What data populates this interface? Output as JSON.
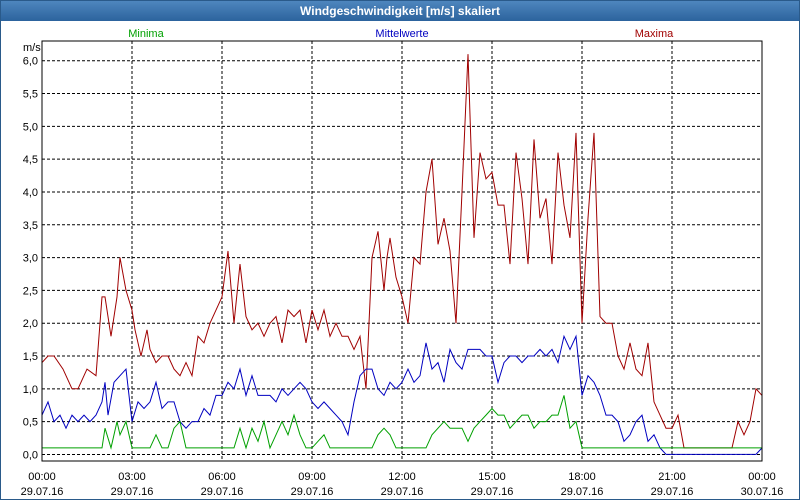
{
  "window": {
    "title": "Windgeschwindigkeit [m/s] skaliert"
  },
  "colors": {
    "minima": "#00a000",
    "mittelwerte": "#0000c0",
    "maxima": "#a00000",
    "grid": "#000000"
  },
  "chart_data": {
    "type": "line",
    "title": "Windgeschwindigkeit [m/s] skaliert",
    "ylabel": "m/s",
    "ylim": [
      -0.1,
      6.3
    ],
    "yticks": [
      "0,0",
      "0,5",
      "1,0",
      "1,5",
      "2,0",
      "2,5",
      "3,0",
      "3,5",
      "4,0",
      "4,5",
      "5,0",
      "5,5",
      "6,0"
    ],
    "xlim": [
      0,
      24
    ],
    "xticks": [
      {
        "time": "00:00",
        "date": "29.07.16"
      },
      {
        "time": "03:00",
        "date": "29.07.16"
      },
      {
        "time": "06:00",
        "date": "29.07.16"
      },
      {
        "time": "09:00",
        "date": "29.07.16"
      },
      {
        "time": "12:00",
        "date": "29.07.16"
      },
      {
        "time": "15:00",
        "date": "29.07.16"
      },
      {
        "time": "18:00",
        "date": "29.07.16"
      },
      {
        "time": "21:00",
        "date": "29.07.16"
      },
      {
        "time": "00:00",
        "date": "30.07.16"
      }
    ],
    "legend": [
      "Minima",
      "Mittelwerte",
      "Maxima"
    ],
    "series": [
      {
        "name": "Maxima",
        "color": "#a00000",
        "x": [
          0,
          0.2,
          0.4,
          0.7,
          1.0,
          1.2,
          1.5,
          1.8,
          2.0,
          2.1,
          2.3,
          2.5,
          2.6,
          2.8,
          3.0,
          3.1,
          3.3,
          3.5,
          3.6,
          3.8,
          4.0,
          4.2,
          4.4,
          4.6,
          4.8,
          5.0,
          5.2,
          5.4,
          5.6,
          5.8,
          6.0,
          6.2,
          6.4,
          6.6,
          6.8,
          7.0,
          7.2,
          7.4,
          7.6,
          7.8,
          8.0,
          8.2,
          8.4,
          8.6,
          8.8,
          9.0,
          9.2,
          9.4,
          9.6,
          9.8,
          10.0,
          10.2,
          10.4,
          10.6,
          10.8,
          11.0,
          11.2,
          11.4,
          11.5,
          11.6,
          11.8,
          12.0,
          12.2,
          12.4,
          12.6,
          12.8,
          13.0,
          13.2,
          13.4,
          13.6,
          13.8,
          14.0,
          14.2,
          14.4,
          14.6,
          14.8,
          15.0,
          15.2,
          15.4,
          15.6,
          15.8,
          16.0,
          16.2,
          16.4,
          16.6,
          16.8,
          17.0,
          17.2,
          17.4,
          17.6,
          17.8,
          18.0,
          18.2,
          18.4,
          18.6,
          18.8,
          19.0,
          19.2,
          19.4,
          19.6,
          19.8,
          20.0,
          20.2,
          20.4,
          20.6,
          20.8,
          21.0,
          21.2,
          21.4,
          22.0,
          22.6,
          23.0,
          23.2,
          23.4,
          23.6,
          23.8,
          24.0
        ],
        "values": [
          1.4,
          1.5,
          1.5,
          1.3,
          1.0,
          1.0,
          1.3,
          1.2,
          2.4,
          2.4,
          1.8,
          2.4,
          3.0,
          2.5,
          2.2,
          1.9,
          1.5,
          1.9,
          1.6,
          1.4,
          1.5,
          1.5,
          1.3,
          1.2,
          1.4,
          1.2,
          1.8,
          1.7,
          2.0,
          2.2,
          2.4,
          3.1,
          2.0,
          2.9,
          2.1,
          1.9,
          2.0,
          1.8,
          2.0,
          2.1,
          1.7,
          2.2,
          2.1,
          2.2,
          1.7,
          2.2,
          1.9,
          2.2,
          1.8,
          2.0,
          1.8,
          1.8,
          1.6,
          1.8,
          1.0,
          3.0,
          3.4,
          2.5,
          3.0,
          3.3,
          2.7,
          2.4,
          2.0,
          3.0,
          2.9,
          4.0,
          4.5,
          3.2,
          3.6,
          3.1,
          2.0,
          4.0,
          6.1,
          3.3,
          4.6,
          4.2,
          4.3,
          3.8,
          3.8,
          2.9,
          4.6,
          3.9,
          2.9,
          4.8,
          3.6,
          3.9,
          2.9,
          4.6,
          3.8,
          3.3,
          4.9,
          2.0,
          3.6,
          4.9,
          2.1,
          2.0,
          2.0,
          1.5,
          1.3,
          1.7,
          1.3,
          1.2,
          1.7,
          0.8,
          0.6,
          0.4,
          0.4,
          0.6,
          0.1,
          0.1,
          0.1,
          0.1,
          0.5,
          0.3,
          0.5,
          1.0,
          0.9
        ]
      },
      {
        "name": "Mittelwerte",
        "color": "#0000c0",
        "x": [
          0,
          0.2,
          0.4,
          0.6,
          0.8,
          1.0,
          1.2,
          1.4,
          1.6,
          1.8,
          2.0,
          2.1,
          2.2,
          2.4,
          2.6,
          2.8,
          3.0,
          3.2,
          3.4,
          3.6,
          3.8,
          4.0,
          4.2,
          4.4,
          4.6,
          4.8,
          5.0,
          5.2,
          5.4,
          5.6,
          5.8,
          6.0,
          6.2,
          6.4,
          6.6,
          6.8,
          7.0,
          7.2,
          7.4,
          7.6,
          7.8,
          8.0,
          8.2,
          8.4,
          8.6,
          8.8,
          9.0,
          9.2,
          9.4,
          9.6,
          9.8,
          10.0,
          10.2,
          10.4,
          10.6,
          10.8,
          11.0,
          11.2,
          11.4,
          11.6,
          11.8,
          12.0,
          12.2,
          12.4,
          12.6,
          12.8,
          13.0,
          13.2,
          13.4,
          13.6,
          13.8,
          14.0,
          14.2,
          14.4,
          14.6,
          14.8,
          15.0,
          15.2,
          15.4,
          15.6,
          15.8,
          16.0,
          16.2,
          16.4,
          16.6,
          16.8,
          17.0,
          17.2,
          17.4,
          17.6,
          17.8,
          18.0,
          18.2,
          18.4,
          18.6,
          18.8,
          19.0,
          19.2,
          19.4,
          19.6,
          19.8,
          20.0,
          20.2,
          20.4,
          20.6,
          20.8,
          21.0,
          21.2,
          21.4,
          21.6,
          22.0,
          22.6,
          23.0,
          23.4,
          23.8,
          24.0
        ],
        "values": [
          0.6,
          0.8,
          0.5,
          0.6,
          0.4,
          0.6,
          0.5,
          0.6,
          0.5,
          0.6,
          0.8,
          1.1,
          0.6,
          1.1,
          1.2,
          1.3,
          0.5,
          0.8,
          0.7,
          0.8,
          1.1,
          0.7,
          0.8,
          0.8,
          0.5,
          0.4,
          0.5,
          0.5,
          0.7,
          0.6,
          0.9,
          0.9,
          1.1,
          1.0,
          1.3,
          0.9,
          1.2,
          0.9,
          0.9,
          0.9,
          0.8,
          1.0,
          0.9,
          1.0,
          1.1,
          1.0,
          0.8,
          0.7,
          0.8,
          0.7,
          0.6,
          0.5,
          0.3,
          0.8,
          1.2,
          1.3,
          1.3,
          1.0,
          0.9,
          1.1,
          1.0,
          1.1,
          1.3,
          1.1,
          1.2,
          1.7,
          1.3,
          1.4,
          1.1,
          1.6,
          1.4,
          1.3,
          1.6,
          1.6,
          1.6,
          1.5,
          1.5,
          1.1,
          1.4,
          1.5,
          1.5,
          1.4,
          1.5,
          1.5,
          1.6,
          1.5,
          1.6,
          1.4,
          1.8,
          1.6,
          1.8,
          0.9,
          1.2,
          1.1,
          0.9,
          0.6,
          0.6,
          0.5,
          0.2,
          0.3,
          0.5,
          0.6,
          0.2,
          0.3,
          0.1,
          0.0,
          0.0,
          0.0,
          0.0,
          0.0,
          0.0,
          0.0,
          0.0,
          0.0,
          0.0,
          0.1
        ]
      },
      {
        "name": "Minima",
        "color": "#00a000",
        "x": [
          0,
          0.4,
          0.8,
          1.2,
          1.6,
          2.0,
          2.1,
          2.3,
          2.5,
          2.6,
          2.8,
          3.0,
          3.3,
          3.6,
          3.8,
          4.0,
          4.2,
          4.4,
          4.6,
          4.8,
          5.0,
          5.4,
          5.8,
          6.2,
          6.4,
          6.6,
          6.8,
          7.0,
          7.2,
          7.4,
          7.6,
          7.8,
          8.0,
          8.2,
          8.4,
          8.6,
          8.8,
          9.0,
          9.2,
          9.4,
          9.6,
          9.8,
          10.2,
          10.6,
          11.0,
          11.2,
          11.4,
          11.6,
          11.8,
          12.0,
          12.4,
          12.8,
          13.0,
          13.2,
          13.4,
          13.6,
          13.8,
          14.0,
          14.2,
          14.4,
          14.6,
          14.8,
          15.0,
          15.2,
          15.4,
          15.6,
          15.8,
          16.0,
          16.2,
          16.4,
          16.6,
          16.8,
          17.0,
          17.2,
          17.4,
          17.6,
          17.8,
          18.0,
          18.4,
          19.0,
          19.6,
          20.2,
          20.8,
          21.4,
          22.0,
          22.6,
          23.2,
          23.8,
          24.0
        ],
        "values": [
          0.1,
          0.1,
          0.1,
          0.1,
          0.1,
          0.1,
          0.4,
          0.1,
          0.5,
          0.3,
          0.5,
          0.1,
          0.1,
          0.1,
          0.3,
          0.1,
          0.1,
          0.4,
          0.5,
          0.1,
          0.1,
          0.1,
          0.1,
          0.1,
          0.1,
          0.4,
          0.1,
          0.4,
          0.2,
          0.5,
          0.1,
          0.3,
          0.5,
          0.3,
          0.6,
          0.3,
          0.1,
          0.1,
          0.2,
          0.3,
          0.1,
          0.1,
          0.1,
          0.1,
          0.1,
          0.3,
          0.4,
          0.3,
          0.1,
          0.1,
          0.1,
          0.1,
          0.3,
          0.4,
          0.5,
          0.4,
          0.4,
          0.4,
          0.2,
          0.4,
          0.5,
          0.6,
          0.7,
          0.6,
          0.6,
          0.4,
          0.5,
          0.6,
          0.6,
          0.4,
          0.5,
          0.5,
          0.6,
          0.6,
          0.9,
          0.4,
          0.5,
          0.1,
          0.1,
          0.1,
          0.1,
          0.1,
          0.1,
          0.1,
          0.1,
          0.1,
          0.1,
          0.1,
          0.1
        ]
      }
    ]
  }
}
